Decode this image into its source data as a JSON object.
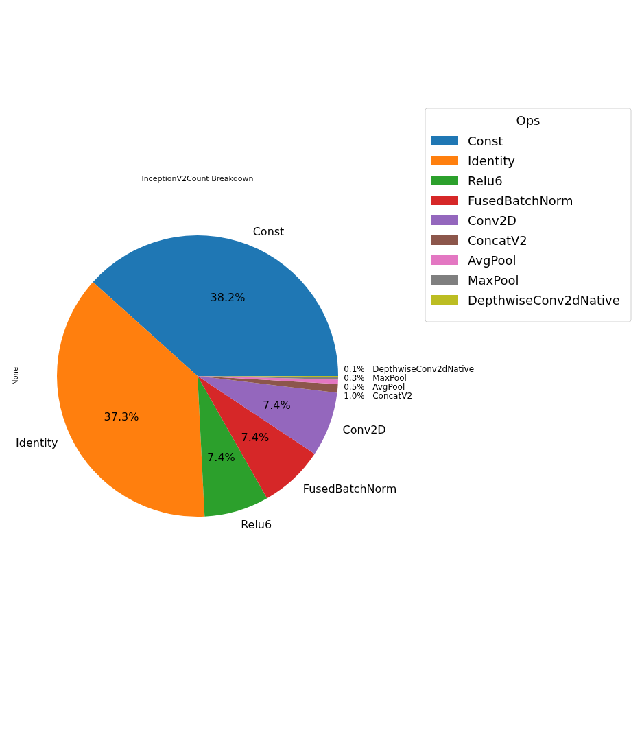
{
  "chart_data": {
    "type": "pie",
    "title": "InceptionV2Count Breakdown",
    "ylabel": "None",
    "legend_title": "Ops",
    "legend": "right",
    "categories": [
      "Const",
      "Identity",
      "Relu6",
      "FusedBatchNorm",
      "Conv2D",
      "ConcatV2",
      "AvgPool",
      "MaxPool",
      "DepthwiseConv2dNative"
    ],
    "values": [
      38.2,
      37.3,
      7.4,
      7.4,
      7.4,
      1.0,
      0.5,
      0.3,
      0.1
    ],
    "colors": [
      "#1f77b4",
      "#ff7f0e",
      "#2ca02c",
      "#d62728",
      "#9467bd",
      "#8c564b",
      "#e377c2",
      "#7f7f7f",
      "#bcbd22"
    ],
    "data_labels": true,
    "value_labels": [
      "38.2%",
      "37.3%",
      "7.4%",
      "7.4%",
      "7.4%",
      "1.0%",
      "0.5%",
      "0.3%",
      "0.1%"
    ]
  }
}
